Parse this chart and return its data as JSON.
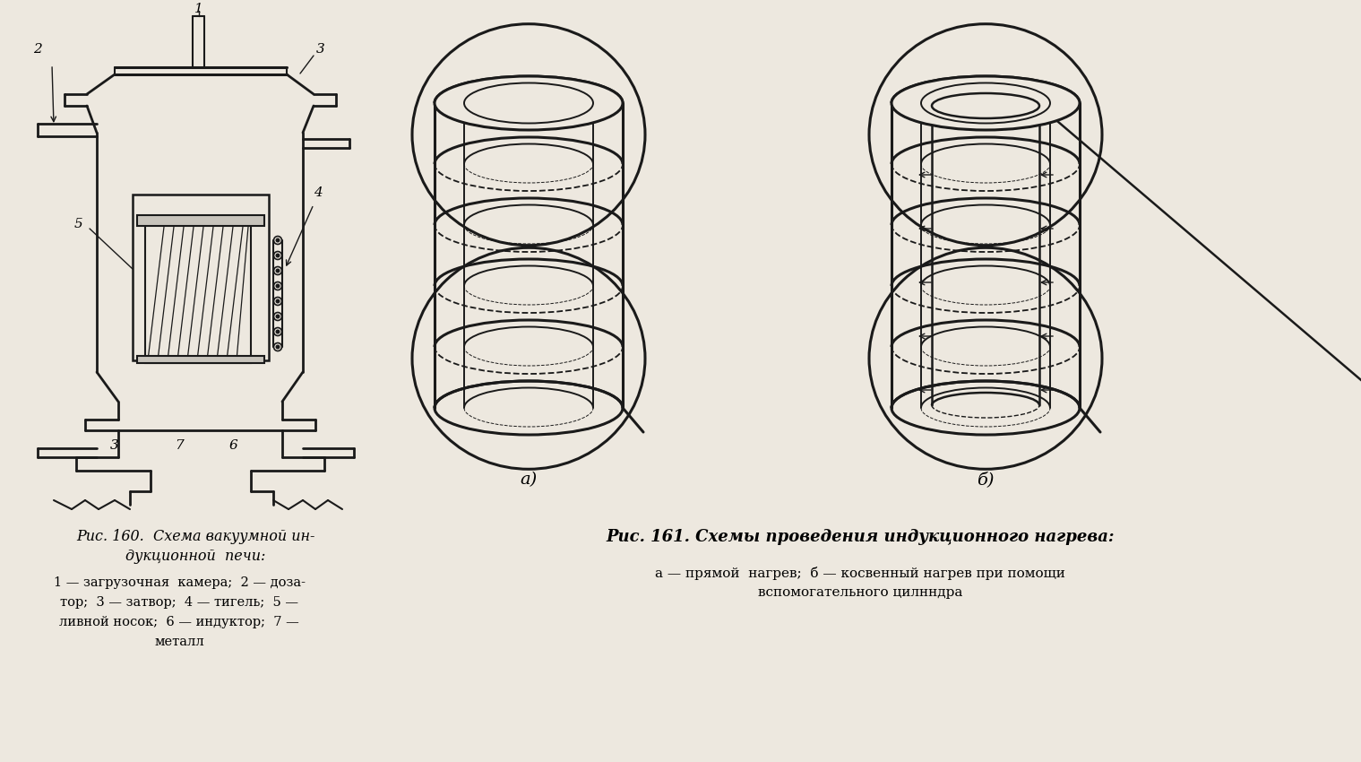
{
  "bg_color": "#ede8df",
  "line_color": "#1a1a1a",
  "fig_width": 15.19,
  "fig_height": 8.5,
  "caption_fig160_line1": "Рис. 160.  Схема вакуумной ин-",
  "caption_fig160_line2": "дукционной  печи:",
  "caption_fig160_line3": "1 — загрузочная  камера;  2 — доза-",
  "caption_fig160_line4": "тор;  3 — затвор;  4 — тигель;  5 —",
  "caption_fig160_line5": "ливной носок;  6 — индуктор;  7 —",
  "caption_fig160_line6": "металл",
  "caption_fig161_title": "Рис. 161. Схемы проведения индукционного нагрева:",
  "caption_fig161_sub": "а — прямой  нагрев;  б — косвенный нагрев при помощи",
  "caption_fig161_sub2": "вспомогательного цилнндра",
  "label_a": "а)",
  "label_b": "б)"
}
